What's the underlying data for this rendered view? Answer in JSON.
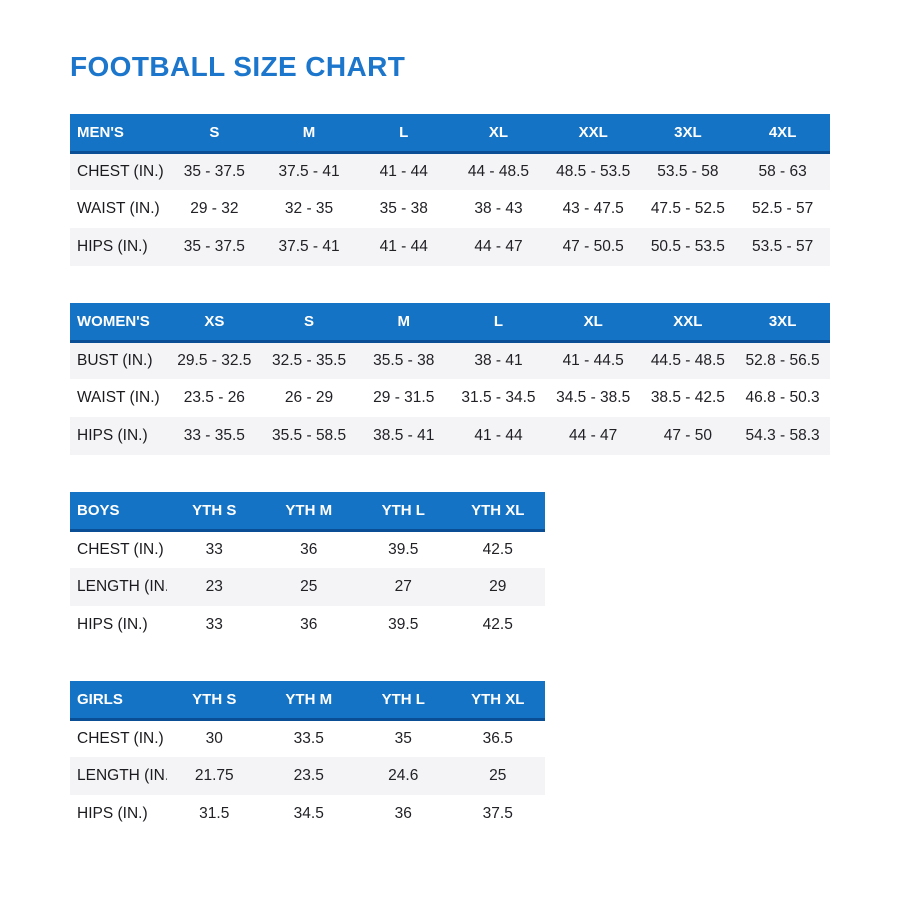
{
  "title": "FOOTBALL SIZE CHART",
  "colors": {
    "title_blue": "#1b76cc",
    "header_bg": "#1573c5",
    "header_border": "#0a4f96",
    "row_stripe": "#f4f4f6"
  },
  "tables": [
    {
      "name": "MEN'S",
      "sizes": [
        "S",
        "M",
        "L",
        "XL",
        "XXL",
        "3XL",
        "4XL"
      ],
      "rows": [
        {
          "label": "CHEST (IN.)",
          "values": [
            "35 - 37.5",
            "37.5 - 41",
            "41 - 44",
            "44 - 48.5",
            "48.5 - 53.5",
            "53.5 - 58",
            "58 - 63"
          ]
        },
        {
          "label": "WAIST (IN.)",
          "values": [
            "29 - 32",
            "32 - 35",
            "35 - 38",
            "38 - 43",
            "43 - 47.5",
            "47.5 - 52.5",
            "52.5 - 57"
          ]
        },
        {
          "label": "HIPS (IN.)",
          "values": [
            "35 - 37.5",
            "37.5 - 41",
            "41 - 44",
            "44 - 47",
            "47 - 50.5",
            "50.5 - 53.5",
            "53.5 - 57"
          ]
        }
      ]
    },
    {
      "name": "WOMEN'S",
      "sizes": [
        "XS",
        "S",
        "M",
        "L",
        "XL",
        "XXL",
        "3XL"
      ],
      "rows": [
        {
          "label": "BUST (IN.)",
          "values": [
            "29.5 - 32.5",
            "32.5 - 35.5",
            "35.5 - 38",
            "38 - 41",
            "41 - 44.5",
            "44.5 - 48.5",
            "52.8 - 56.5"
          ]
        },
        {
          "label": "WAIST (IN.)",
          "values": [
            "23.5 - 26",
            "26 - 29",
            "29 - 31.5",
            "31.5 - 34.5",
            "34.5 - 38.5",
            "38.5 - 42.5",
            "46.8 - 50.3"
          ]
        },
        {
          "label": "HIPS (IN.)",
          "values": [
            "33 - 35.5",
            "35.5 - 58.5",
            "38.5 - 41",
            "41 - 44",
            "44 - 47",
            "47 - 50",
            "54.3 - 58.3"
          ]
        }
      ]
    },
    {
      "name": "BOYS",
      "sizes": [
        "YTH S",
        "YTH M",
        "YTH L",
        "YTH XL"
      ],
      "rows": [
        {
          "label": "CHEST (IN.)",
          "values": [
            "33",
            "36",
            "39.5",
            "42.5"
          ]
        },
        {
          "label": "LENGTH (IN.)",
          "values": [
            "23",
            "25",
            "27",
            "29"
          ]
        },
        {
          "label": "HIPS (IN.)",
          "values": [
            "33",
            "36",
            "39.5",
            "42.5"
          ]
        }
      ]
    },
    {
      "name": "GIRLS",
      "sizes": [
        "YTH S",
        "YTH M",
        "YTH L",
        "YTH XL"
      ],
      "rows": [
        {
          "label": "CHEST (IN.)",
          "values": [
            "30",
            "33.5",
            "35",
            "36.5"
          ]
        },
        {
          "label": "LENGTH (IN.)",
          "values": [
            "21.75",
            "23.5",
            "24.6",
            "25"
          ]
        },
        {
          "label": "HIPS (IN.)",
          "values": [
            "31.5",
            "34.5",
            "36",
            "37.5"
          ]
        }
      ]
    }
  ]
}
